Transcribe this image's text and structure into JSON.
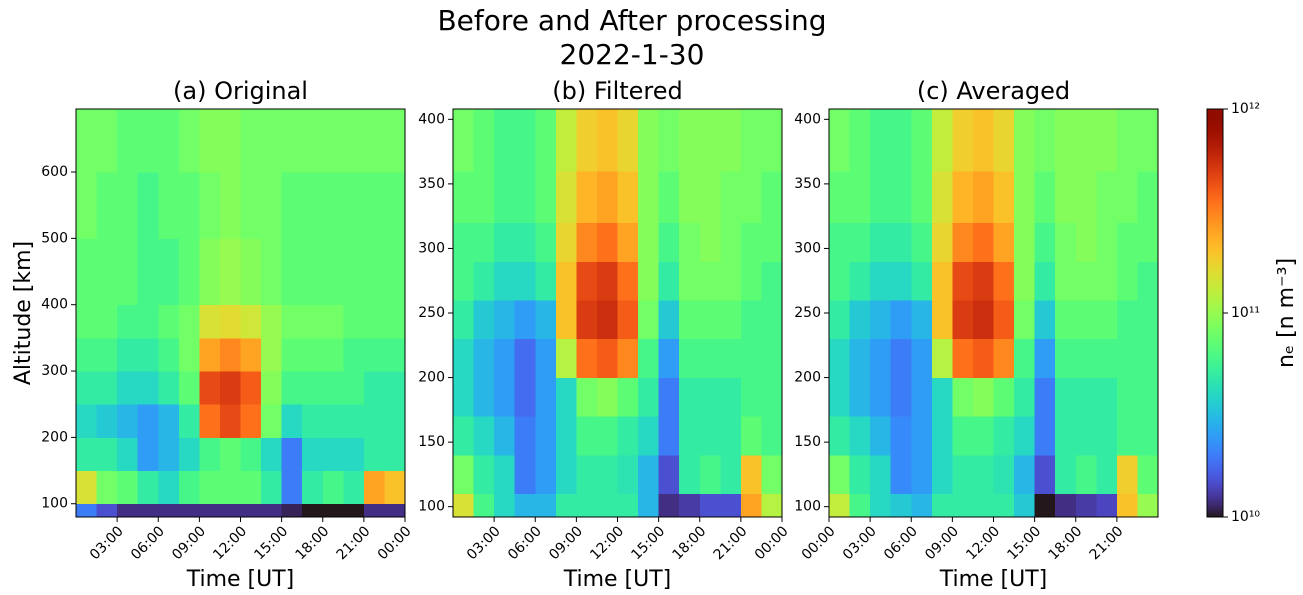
{
  "title": "Before and After processing",
  "subtitle": "2022-1-30",
  "colorbar": {
    "label": "nₑ [n m⁻³]",
    "scale": "log",
    "colormap": "turbo",
    "lim": [
      10000000000.0,
      1000000000000.0
    ],
    "ticks": [
      {
        "value": 10000000000.0,
        "label": "10¹⁰"
      },
      {
        "value": 100000000000.0,
        "label": "10¹¹"
      },
      {
        "value": 1000000000000.0,
        "label": "10¹²"
      }
    ]
  },
  "chart_data": [
    {
      "type": "heatmap",
      "title": "(a) Original",
      "xlabel": "Time [UT]",
      "ylabel": "Altitude [km]",
      "xlim": [
        0,
        24
      ],
      "ylim": [
        80,
        695
      ],
      "xticks": [
        {
          "value": 3,
          "label": "03:00"
        },
        {
          "value": 6,
          "label": "06:00"
        },
        {
          "value": 9,
          "label": "09:00"
        },
        {
          "value": 12,
          "label": "12:00"
        },
        {
          "value": 15,
          "label": "15:00"
        },
        {
          "value": 18,
          "label": "18:00"
        },
        {
          "value": 21,
          "label": "21:00"
        },
        {
          "value": 24,
          "label": "00:00"
        }
      ],
      "yticks": [
        100,
        200,
        300,
        400,
        500,
        600
      ],
      "xbins": [
        0,
        1.5,
        3,
        4.5,
        6,
        7.5,
        9,
        10.5,
        12,
        13.5,
        15,
        16.5,
        18,
        19.5,
        21,
        22.5,
        24
      ],
      "ybins": [
        80,
        100,
        150,
        200,
        250,
        300,
        350,
        400,
        500,
        600,
        695
      ],
      "values": [
        [
          20000000000.0,
          15000000000.0,
          12000000000.0,
          12000000000.0,
          12000000000.0,
          12000000000.0,
          12000000000.0,
          12000000000.0,
          12000000000.0,
          12000000000.0,
          11000000000.0,
          10000000000.0,
          10000000000.0,
          10000000000.0,
          12000000000.0,
          12000000000.0
        ],
        [
          150000000000.0,
          80000000000.0,
          70000000000.0,
          50000000000.0,
          40000000000.0,
          60000000000.0,
          70000000000.0,
          70000000000.0,
          70000000000.0,
          50000000000.0,
          20000000000.0,
          50000000000.0,
          60000000000.0,
          50000000000.0,
          250000000000.0,
          200000000000.0
        ],
        [
          50000000000.0,
          50000000000.0,
          40000000000.0,
          25000000000.0,
          30000000000.0,
          40000000000.0,
          60000000000.0,
          70000000000.0,
          60000000000.0,
          40000000000.0,
          20000000000.0,
          40000000000.0,
          40000000000.0,
          40000000000.0,
          50000000000.0,
          50000000000.0
        ],
        [
          40000000000.0,
          35000000000.0,
          30000000000.0,
          25000000000.0,
          30000000000.0,
          50000000000.0,
          350000000000.0,
          450000000000.0,
          350000000000.0,
          80000000000.0,
          40000000000.0,
          50000000000.0,
          50000000000.0,
          50000000000.0,
          50000000000.0,
          50000000000.0
        ],
        [
          50000000000.0,
          50000000000.0,
          40000000000.0,
          40000000000.0,
          50000000000.0,
          70000000000.0,
          450000000000.0,
          500000000000.0,
          400000000000.0,
          90000000000.0,
          60000000000.0,
          60000000000.0,
          60000000000.0,
          60000000000.0,
          50000000000.0,
          50000000000.0
        ],
        [
          60000000000.0,
          60000000000.0,
          50000000000.0,
          50000000000.0,
          60000000000.0,
          80000000000.0,
          250000000000.0,
          300000000000.0,
          250000000000.0,
          100000000000.0,
          70000000000.0,
          70000000000.0,
          70000000000.0,
          60000000000.0,
          60000000000.0,
          60000000000.0
        ],
        [
          70000000000.0,
          70000000000.0,
          60000000000.0,
          60000000000.0,
          70000000000.0,
          80000000000.0,
          150000000000.0,
          160000000000.0,
          140000000000.0,
          100000000000.0,
          80000000000.0,
          80000000000.0,
          80000000000.0,
          70000000000.0,
          70000000000.0,
          70000000000.0
        ],
        [
          70000000000.0,
          70000000000.0,
          70000000000.0,
          60000000000.0,
          60000000000.0,
          70000000000.0,
          90000000000.0,
          100000000000.0,
          90000000000.0,
          80000000000.0,
          70000000000.0,
          70000000000.0,
          70000000000.0,
          70000000000.0,
          70000000000.0,
          70000000000.0
        ],
        [
          80000000000.0,
          70000000000.0,
          70000000000.0,
          60000000000.0,
          70000000000.0,
          70000000000.0,
          80000000000.0,
          90000000000.0,
          80000000000.0,
          80000000000.0,
          70000000000.0,
          70000000000.0,
          70000000000.0,
          70000000000.0,
          70000000000.0,
          70000000000.0
        ],
        [
          80000000000.0,
          80000000000.0,
          70000000000.0,
          70000000000.0,
          70000000000.0,
          80000000000.0,
          90000000000.0,
          90000000000.0,
          80000000000.0,
          80000000000.0,
          80000000000.0,
          80000000000.0,
          80000000000.0,
          80000000000.0,
          80000000000.0,
          80000000000.0
        ]
      ]
    },
    {
      "type": "heatmap",
      "title": "(b) Filtered",
      "xlabel": "Time [UT]",
      "xlim": [
        0,
        24
      ],
      "ylim": [
        92,
        408
      ],
      "xticks": [
        {
          "value": 3,
          "label": "03:00"
        },
        {
          "value": 6,
          "label": "06:00"
        },
        {
          "value": 9,
          "label": "09:00"
        },
        {
          "value": 12,
          "label": "12:00"
        },
        {
          "value": 15,
          "label": "15:00"
        },
        {
          "value": 18,
          "label": "18:00"
        },
        {
          "value": 21,
          "label": "21:00"
        },
        {
          "value": 24,
          "label": "00:00"
        }
      ],
      "yticks": [
        100,
        150,
        200,
        250,
        300,
        350,
        400
      ],
      "xbins": [
        0,
        1.5,
        3,
        4.5,
        6,
        7.5,
        9,
        10.5,
        12,
        13.5,
        15,
        16.5,
        18,
        19.5,
        21,
        22.5,
        24
      ],
      "ybins": [
        92,
        110,
        140,
        170,
        200,
        230,
        260,
        290,
        320,
        360,
        408
      ],
      "values": [
        [
          150000000000.0,
          60000000000.0,
          40000000000.0,
          30000000000.0,
          30000000000.0,
          50000000000.0,
          50000000000.0,
          50000000000.0,
          50000000000.0,
          30000000000.0,
          12000000000.0,
          13000000000.0,
          15000000000.0,
          15000000000.0,
          250000000000.0,
          120000000000.0
        ],
        [
          80000000000.0,
          50000000000.0,
          40000000000.0,
          20000000000.0,
          25000000000.0,
          40000000000.0,
          50000000000.0,
          50000000000.0,
          45000000000.0,
          30000000000.0,
          15000000000.0,
          50000000000.0,
          60000000000.0,
          50000000000.0,
          200000000000.0,
          80000000000.0
        ],
        [
          50000000000.0,
          40000000000.0,
          30000000000.0,
          20000000000.0,
          25000000000.0,
          40000000000.0,
          60000000000.0,
          60000000000.0,
          50000000000.0,
          40000000000.0,
          20000000000.0,
          50000000000.0,
          50000000000.0,
          50000000000.0,
          70000000000.0,
          60000000000.0
        ],
        [
          40000000000.0,
          30000000000.0,
          25000000000.0,
          18000000000.0,
          25000000000.0,
          40000000000.0,
          80000000000.0,
          90000000000.0,
          70000000000.0,
          50000000000.0,
          20000000000.0,
          50000000000.0,
          50000000000.0,
          50000000000.0,
          60000000000.0,
          60000000000.0
        ],
        [
          40000000000.0,
          30000000000.0,
          25000000000.0,
          18000000000.0,
          25000000000.0,
          120000000000.0,
          350000000000.0,
          400000000000.0,
          300000000000.0,
          60000000000.0,
          25000000000.0,
          60000000000.0,
          60000000000.0,
          60000000000.0,
          60000000000.0,
          60000000000.0
        ],
        [
          50000000000.0,
          35000000000.0,
          30000000000.0,
          25000000000.0,
          30000000000.0,
          200000000000.0,
          500000000000.0,
          550000000000.0,
          400000000000.0,
          80000000000.0,
          35000000000.0,
          70000000000.0,
          70000000000.0,
          70000000000.0,
          60000000000.0,
          60000000000.0
        ],
        [
          60000000000.0,
          50000000000.0,
          40000000000.0,
          40000000000.0,
          50000000000.0,
          200000000000.0,
          450000000000.0,
          500000000000.0,
          350000000000.0,
          90000000000.0,
          50000000000.0,
          80000000000.0,
          80000000000.0,
          80000000000.0,
          70000000000.0,
          60000000000.0
        ],
        [
          60000000000.0,
          60000000000.0,
          50000000000.0,
          50000000000.0,
          60000000000.0,
          170000000000.0,
          300000000000.0,
          350000000000.0,
          250000000000.0,
          90000000000.0,
          60000000000.0,
          80000000000.0,
          90000000000.0,
          80000000000.0,
          70000000000.0,
          70000000000.0
        ],
        [
          70000000000.0,
          70000000000.0,
          60000000000.0,
          60000000000.0,
          70000000000.0,
          150000000000.0,
          220000000000.0,
          250000000000.0,
          200000000000.0,
          90000000000.0,
          70000000000.0,
          90000000000.0,
          90000000000.0,
          80000000000.0,
          80000000000.0,
          70000000000.0
        ],
        [
          80000000000.0,
          70000000000.0,
          60000000000.0,
          60000000000.0,
          70000000000.0,
          130000000000.0,
          180000000000.0,
          200000000000.0,
          170000000000.0,
          90000000000.0,
          80000000000.0,
          90000000000.0,
          90000000000.0,
          90000000000.0,
          80000000000.0,
          80000000000.0
        ]
      ]
    },
    {
      "type": "heatmap",
      "title": "(c) Averaged",
      "xlabel": "Time [UT]",
      "xlim": [
        0,
        24
      ],
      "ylim": [
        92,
        408
      ],
      "xticks": [
        {
          "value": 0,
          "label": "00:00"
        },
        {
          "value": 3,
          "label": "03:00"
        },
        {
          "value": 6,
          "label": "06:00"
        },
        {
          "value": 9,
          "label": "09:00"
        },
        {
          "value": 12,
          "label": "12:00"
        },
        {
          "value": 15,
          "label": "15:00"
        },
        {
          "value": 18,
          "label": "18:00"
        },
        {
          "value": 21,
          "label": "21:00"
        }
      ],
      "yticks": [
        100,
        150,
        200,
        250,
        300,
        350,
        400
      ],
      "xbins": [
        0,
        1.5,
        3,
        4.5,
        6,
        7.5,
        9,
        10.5,
        12,
        13.5,
        15,
        16.5,
        18,
        19.5,
        21,
        22.5,
        24
      ],
      "ybins": [
        92,
        110,
        140,
        170,
        200,
        230,
        260,
        290,
        320,
        360,
        408
      ],
      "values": [
        [
          130000000000.0,
          60000000000.0,
          40000000000.0,
          35000000000.0,
          30000000000.0,
          50000000000.0,
          50000000000.0,
          50000000000.0,
          50000000000.0,
          35000000000.0,
          10000000000.0,
          12000000000.0,
          13000000000.0,
          14000000000.0,
          200000000000.0,
          100000000000.0
        ],
        [
          80000000000.0,
          50000000000.0,
          40000000000.0,
          22000000000.0,
          25000000000.0,
          40000000000.0,
          50000000000.0,
          50000000000.0,
          45000000000.0,
          30000000000.0,
          15000000000.0,
          50000000000.0,
          60000000000.0,
          50000000000.0,
          180000000000.0,
          70000000000.0
        ],
        [
          50000000000.0,
          40000000000.0,
          30000000000.0,
          22000000000.0,
          25000000000.0,
          40000000000.0,
          60000000000.0,
          60000000000.0,
          50000000000.0,
          40000000000.0,
          20000000000.0,
          50000000000.0,
          50000000000.0,
          50000000000.0,
          60000000000.0,
          60000000000.0
        ],
        [
          40000000000.0,
          30000000000.0,
          25000000000.0,
          20000000000.0,
          25000000000.0,
          40000000000.0,
          80000000000.0,
          90000000000.0,
          70000000000.0,
          50000000000.0,
          20000000000.0,
          50000000000.0,
          50000000000.0,
          50000000000.0,
          60000000000.0,
          60000000000.0
        ],
        [
          40000000000.0,
          30000000000.0,
          25000000000.0,
          20000000000.0,
          25000000000.0,
          120000000000.0,
          350000000000.0,
          400000000000.0,
          300000000000.0,
          60000000000.0,
          25000000000.0,
          60000000000.0,
          60000000000.0,
          60000000000.0,
          60000000000.0,
          60000000000.0
        ],
        [
          50000000000.0,
          35000000000.0,
          30000000000.0,
          25000000000.0,
          30000000000.0,
          200000000000.0,
          500000000000.0,
          550000000000.0,
          400000000000.0,
          80000000000.0,
          35000000000.0,
          70000000000.0,
          70000000000.0,
          70000000000.0,
          60000000000.0,
          60000000000.0
        ],
        [
          60000000000.0,
          50000000000.0,
          40000000000.0,
          40000000000.0,
          50000000000.0,
          200000000000.0,
          450000000000.0,
          500000000000.0,
          350000000000.0,
          90000000000.0,
          50000000000.0,
          80000000000.0,
          80000000000.0,
          80000000000.0,
          70000000000.0,
          60000000000.0
        ],
        [
          60000000000.0,
          60000000000.0,
          50000000000.0,
          50000000000.0,
          60000000000.0,
          170000000000.0,
          300000000000.0,
          350000000000.0,
          250000000000.0,
          90000000000.0,
          60000000000.0,
          80000000000.0,
          90000000000.0,
          80000000000.0,
          70000000000.0,
          70000000000.0
        ],
        [
          70000000000.0,
          70000000000.0,
          60000000000.0,
          60000000000.0,
          70000000000.0,
          150000000000.0,
          220000000000.0,
          250000000000.0,
          200000000000.0,
          90000000000.0,
          70000000000.0,
          90000000000.0,
          90000000000.0,
          80000000000.0,
          80000000000.0,
          70000000000.0
        ],
        [
          80000000000.0,
          70000000000.0,
          60000000000.0,
          60000000000.0,
          70000000000.0,
          130000000000.0,
          180000000000.0,
          200000000000.0,
          170000000000.0,
          90000000000.0,
          80000000000.0,
          90000000000.0,
          90000000000.0,
          90000000000.0,
          80000000000.0,
          80000000000.0
        ]
      ]
    }
  ]
}
